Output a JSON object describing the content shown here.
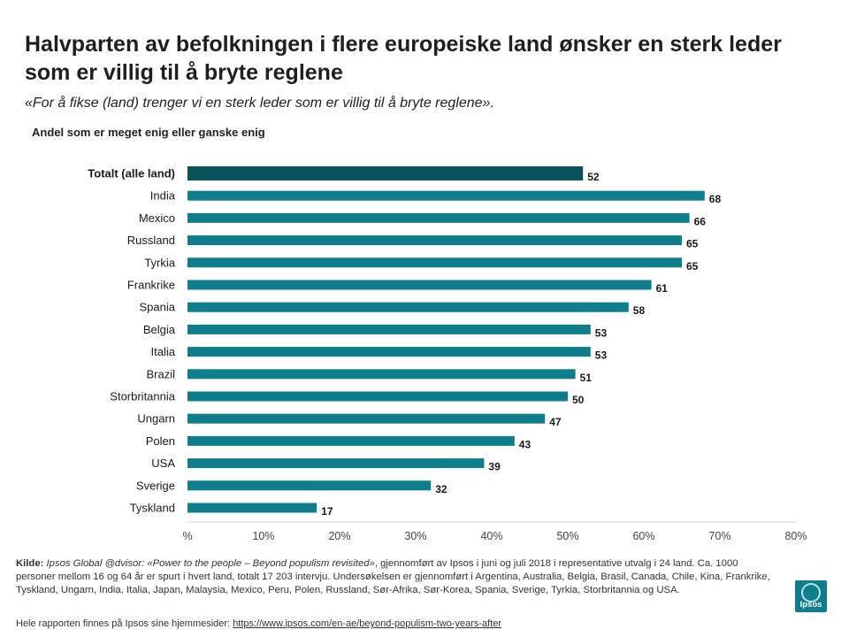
{
  "header": {
    "title": "Halvparten av befolkningen i flere europeiske land ønsker en sterk leder som er villig til å bryte reglene",
    "subtitle": "«For å fikse (land) trenger vi en sterk leder som er villig til å bryte reglene».",
    "measure": "Andel som er meget enig eller ganske enig"
  },
  "chart_data": {
    "type": "bar",
    "orientation": "horizontal",
    "categories": [
      "Totalt (alle land)",
      "India",
      "Mexico",
      "Russland",
      "Tyrkia",
      "Frankrike",
      "Spania",
      "Belgia",
      "Italia",
      "Brazil",
      "Storbritannia",
      "Ungarn",
      "Polen",
      "USA",
      "Sverige",
      "Tyskland"
    ],
    "values": [
      52,
      68,
      66,
      65,
      65,
      61,
      58,
      53,
      53,
      51,
      50,
      47,
      43,
      39,
      32,
      17
    ],
    "highlight_index": 0,
    "xlim": [
      0,
      80
    ],
    "xticks": [
      "%",
      "10%",
      "20%",
      "30%",
      "40%",
      "50%",
      "60%",
      "70%",
      "80%"
    ],
    "grid": false,
    "colors": {
      "bar": "#0f7e8c",
      "highlight": "#0a525c"
    }
  },
  "footer": {
    "source_label": "Kilde:",
    "source_italic": "Ipsos Global @dvisor: «Power to the people – Beyond populism revisited»",
    "source_text": ", gjennomført av Ipsos i juni og juli 2018 i representative utvalg i 24 land. Ca. 1000 personer mellom 16 og 64 år er spurt i hvert land, totalt 17 203 intervju. Undersøkelsen er gjennomført i Argentina, Australia, Belgia, Brasil, Canada, Chile, Kina, Frankrike, Tyskland, Ungarn, India, Italia, Japan, Malaysia, Mexico, Peru, Polen, Russland, Sør-Afrika, Sør-Korea, Spania, Sverige, Tyrkia, Storbritannia og USA.",
    "report_text": "Hele rapporten finnes på Ipsos sine hjemmesider: ",
    "report_link": "https://www.ipsos.com/en-ae/beyond-populism-two-years-after"
  },
  "logo": {
    "text": "Ipsos",
    "color": "#0f7e8c"
  }
}
